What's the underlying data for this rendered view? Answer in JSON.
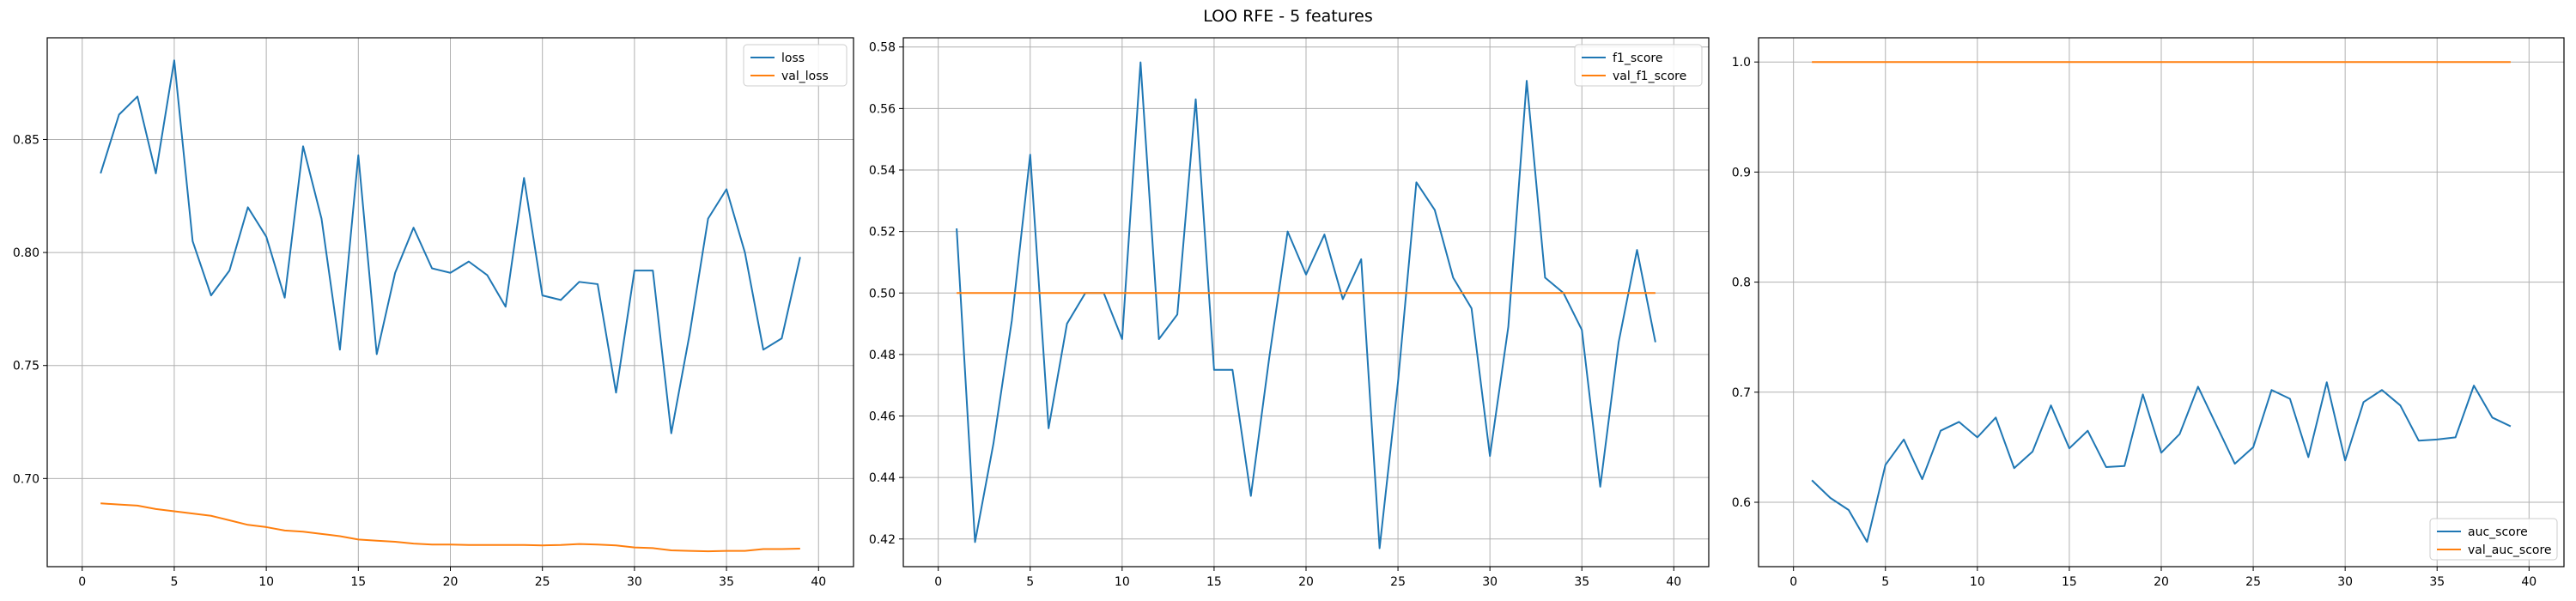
{
  "figure": {
    "title": "LOO RFE - 5 features"
  },
  "colors": {
    "train": "#1f77b4",
    "val": "#ff7f0e",
    "grid": "#b0b0b0"
  },
  "chart_data": [
    {
      "type": "line",
      "title": "",
      "xlabel": "",
      "ylabel": "",
      "xlim": [
        -1.9,
        41.9
      ],
      "ylim": [
        0.661,
        0.895
      ],
      "xticks": [
        0,
        5,
        10,
        15,
        20,
        25,
        30,
        35,
        40
      ],
      "yticks": [
        0.7,
        0.75,
        0.8,
        0.85
      ],
      "ytick_labels": [
        "0.70",
        "0.75",
        "0.80",
        "0.85"
      ],
      "grid": true,
      "legend_position": "top-right",
      "x": [
        1,
        2,
        3,
        4,
        5,
        6,
        7,
        8,
        9,
        10,
        11,
        12,
        13,
        14,
        15,
        16,
        17,
        18,
        19,
        20,
        21,
        22,
        23,
        24,
        25,
        26,
        27,
        28,
        29,
        30,
        31,
        32,
        33,
        34,
        35,
        36,
        37,
        38,
        39
      ],
      "series": [
        {
          "name": "loss",
          "color_key": "train",
          "values": [
            0.835,
            0.861,
            0.869,
            0.835,
            0.885,
            0.805,
            0.781,
            0.792,
            0.82,
            0.807,
            0.78,
            0.847,
            0.815,
            0.757,
            0.843,
            0.755,
            0.791,
            0.811,
            0.793,
            0.791,
            0.796,
            0.79,
            0.776,
            0.833,
            0.781,
            0.779,
            0.787,
            0.786,
            0.738,
            0.792,
            0.792,
            0.72,
            0.764,
            0.815,
            0.828,
            0.8,
            0.757,
            0.762,
            0.798
          ]
        },
        {
          "name": "val_loss",
          "color_key": "val",
          "values": [
            0.689,
            0.6885,
            0.688,
            0.6865,
            0.6855,
            0.6845,
            0.6835,
            0.6815,
            0.6795,
            0.6785,
            0.677,
            0.6765,
            0.6755,
            0.6745,
            0.673,
            0.6725,
            0.672,
            0.6712,
            0.6708,
            0.6708,
            0.6706,
            0.6706,
            0.6706,
            0.6706,
            0.6704,
            0.6706,
            0.671,
            0.6708,
            0.6704,
            0.6695,
            0.6692,
            0.6682,
            0.668,
            0.6678,
            0.668,
            0.668,
            0.6688,
            0.6688,
            0.669
          ]
        }
      ]
    },
    {
      "type": "line",
      "title": "",
      "xlabel": "",
      "ylabel": "",
      "xlim": [
        -1.9,
        41.9
      ],
      "ylim": [
        0.411,
        0.583
      ],
      "xticks": [
        0,
        5,
        10,
        15,
        20,
        25,
        30,
        35,
        40
      ],
      "yticks": [
        0.42,
        0.44,
        0.46,
        0.48,
        0.5,
        0.52,
        0.54,
        0.56,
        0.58
      ],
      "ytick_labels": [
        "0.42",
        "0.44",
        "0.46",
        "0.48",
        "0.50",
        "0.52",
        "0.54",
        "0.56",
        "0.58"
      ],
      "grid": true,
      "legend_position": "top-right",
      "x": [
        1,
        2,
        3,
        4,
        5,
        6,
        7,
        8,
        9,
        10,
        11,
        12,
        13,
        14,
        15,
        16,
        17,
        18,
        19,
        20,
        21,
        22,
        23,
        24,
        25,
        26,
        27,
        28,
        29,
        30,
        31,
        32,
        33,
        34,
        35,
        36,
        37,
        38,
        39
      ],
      "series": [
        {
          "name": "f1_score",
          "color_key": "train",
          "values": [
            0.521,
            0.419,
            0.451,
            0.491,
            0.545,
            0.456,
            0.49,
            0.5,
            0.5,
            0.485,
            0.575,
            0.485,
            0.493,
            0.563,
            0.475,
            0.475,
            0.434,
            0.479,
            0.52,
            0.506,
            0.519,
            0.498,
            0.511,
            0.417,
            0.471,
            0.536,
            0.527,
            0.505,
            0.495,
            0.447,
            0.489,
            0.569,
            0.505,
            0.5,
            0.488,
            0.437,
            0.484,
            0.514,
            0.484
          ]
        },
        {
          "name": "val_f1_score",
          "color_key": "val",
          "values": [
            0.5,
            0.5,
            0.5,
            0.5,
            0.5,
            0.5,
            0.5,
            0.5,
            0.5,
            0.5,
            0.5,
            0.5,
            0.5,
            0.5,
            0.5,
            0.5,
            0.5,
            0.5,
            0.5,
            0.5,
            0.5,
            0.5,
            0.5,
            0.5,
            0.5,
            0.5,
            0.5,
            0.5,
            0.5,
            0.5,
            0.5,
            0.5,
            0.5,
            0.5,
            0.5,
            0.5,
            0.5,
            0.5,
            0.5
          ]
        }
      ]
    },
    {
      "type": "line",
      "title": "",
      "xlabel": "",
      "ylabel": "",
      "xlim": [
        -1.9,
        41.9
      ],
      "ylim": [
        0.5415,
        1.022
      ],
      "xticks": [
        0,
        5,
        10,
        15,
        20,
        25,
        30,
        35,
        40
      ],
      "yticks": [
        0.6,
        0.7,
        0.8,
        0.9,
        1.0
      ],
      "ytick_labels": [
        "0.6",
        "0.7",
        "0.8",
        "0.9",
        "1.0"
      ],
      "grid": true,
      "legend_position": "bottom-right",
      "x": [
        1,
        2,
        3,
        4,
        5,
        6,
        7,
        8,
        9,
        10,
        11,
        12,
        13,
        14,
        15,
        16,
        17,
        18,
        19,
        20,
        21,
        22,
        23,
        24,
        25,
        26,
        27,
        28,
        29,
        30,
        31,
        32,
        33,
        34,
        35,
        36,
        37,
        38,
        39
      ],
      "series": [
        {
          "name": "auc_score",
          "color_key": "train",
          "values": [
            0.62,
            0.604,
            0.593,
            0.564,
            0.634,
            0.657,
            0.621,
            0.665,
            0.673,
            0.659,
            0.677,
            0.631,
            0.646,
            0.688,
            0.649,
            0.665,
            0.632,
            0.633,
            0.698,
            0.645,
            0.662,
            0.705,
            0.67,
            0.635,
            0.65,
            0.702,
            0.694,
            0.641,
            0.709,
            0.638,
            0.691,
            0.702,
            0.688,
            0.656,
            0.657,
            0.659,
            0.706,
            0.677,
            0.669
          ]
        },
        {
          "name": "val_auc_score",
          "color_key": "val",
          "values": [
            1.0,
            1.0,
            1.0,
            1.0,
            1.0,
            1.0,
            1.0,
            1.0,
            1.0,
            1.0,
            1.0,
            1.0,
            1.0,
            1.0,
            1.0,
            1.0,
            1.0,
            1.0,
            1.0,
            1.0,
            1.0,
            1.0,
            1.0,
            1.0,
            1.0,
            1.0,
            1.0,
            1.0,
            1.0,
            1.0,
            1.0,
            1.0,
            1.0,
            1.0,
            1.0,
            1.0,
            1.0,
            1.0,
            1.0
          ]
        }
      ]
    }
  ]
}
